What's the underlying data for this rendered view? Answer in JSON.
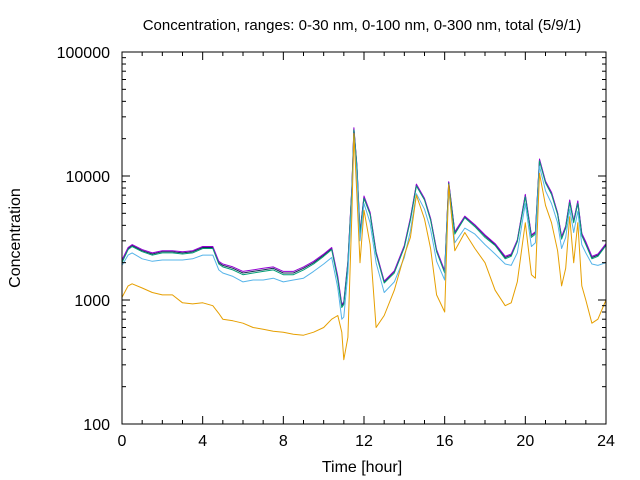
{
  "chart_data": {
    "type": "line",
    "title": "Concentration, ranges: 0-30 nm, 0-100 nm, 0-300 nm, total (5/9/1)",
    "xlabel": "Time [hour]",
    "ylabel": "Concentration",
    "xlim": [
      0,
      24
    ],
    "ylim": [
      100,
      100000
    ],
    "yscale": "log",
    "grid": false,
    "legend": "none",
    "x_ticks": [
      "0",
      "4",
      "8",
      "12",
      "16",
      "20",
      "24"
    ],
    "x_tick_values": [
      0,
      4,
      8,
      12,
      16,
      20,
      24
    ],
    "y_ticks": [
      "100",
      "1000",
      "10000",
      "100000"
    ],
    "y_tick_values": [
      100,
      1000,
      10000,
      100000
    ],
    "x": [
      0,
      0.3,
      0.5,
      1,
      1.5,
      2,
      2.5,
      3,
      3.5,
      4,
      4.5,
      4.8,
      5,
      5.5,
      6,
      6.5,
      7,
      7.5,
      8,
      8.5,
      9,
      9.5,
      10,
      10.4,
      10.7,
      10.9,
      11,
      11.2,
      11.4,
      11.5,
      11.65,
      11.8,
      12,
      12.3,
      12.6,
      13,
      13.5,
      14,
      14.3,
      14.6,
      15,
      15.3,
      15.6,
      16,
      16.2,
      16.5,
      17,
      17.5,
      18,
      18.5,
      19,
      19.3,
      19.6,
      20,
      20.3,
      20.5,
      20.7,
      21,
      21.3,
      21.6,
      21.8,
      22,
      22.2,
      22.4,
      22.6,
      22.8,
      23,
      23.3,
      23.6,
      24
    ],
    "series": [
      {
        "color": "#1c2a5a",
        "values": [
          2050,
          2600,
          2750,
          2500,
          2350,
          2450,
          2450,
          2400,
          2450,
          2650,
          2650,
          2000,
          1900,
          1800,
          1650,
          1700,
          1750,
          1800,
          1650,
          1650,
          1800,
          2000,
          2300,
          2600,
          1500,
          900,
          950,
          2000,
          8000,
          24000,
          12000,
          3500,
          6800,
          5000,
          2400,
          1400,
          1700,
          2700,
          4500,
          8500,
          6500,
          4500,
          2500,
          1700,
          8900,
          3500,
          4700,
          4000,
          3300,
          2800,
          2200,
          2300,
          3000,
          7000,
          3300,
          3500,
          13500,
          9000,
          7300,
          5000,
          3200,
          3900,
          6300,
          4300,
          6200,
          3400,
          2900,
          2200,
          2300,
          2800
        ]
      },
      {
        "color": "#9400d3",
        "values": [
          2100,
          2650,
          2800,
          2550,
          2400,
          2500,
          2500,
          2450,
          2500,
          2700,
          2700,
          2050,
          1950,
          1850,
          1700,
          1750,
          1800,
          1850,
          1700,
          1700,
          1850,
          2050,
          2350,
          2650,
          1550,
          920,
          970,
          2050,
          8200,
          24500,
          12200,
          3550,
          6900,
          5100,
          2450,
          1420,
          1720,
          2750,
          4600,
          8600,
          6600,
          4550,
          2550,
          1720,
          9000,
          3550,
          4750,
          4050,
          3350,
          2850,
          2250,
          2350,
          3050,
          7100,
          3350,
          3550,
          13700,
          9100,
          7400,
          5050,
          3250,
          3950,
          6400,
          4350,
          6300,
          3450,
          2950,
          2250,
          2350,
          2850
        ]
      },
      {
        "color": "#009e73",
        "values": [
          2000,
          2550,
          2700,
          2450,
          2300,
          2400,
          2400,
          2350,
          2400,
          2600,
          2600,
          1950,
          1850,
          1750,
          1600,
          1650,
          1700,
          1750,
          1600,
          1600,
          1750,
          1950,
          2250,
          2550,
          1450,
          870,
          920,
          1950,
          7800,
          23500,
          11800,
          3400,
          6600,
          4900,
          2350,
          1370,
          1650,
          2650,
          4400,
          8300,
          6400,
          4400,
          2450,
          1650,
          8700,
          3400,
          4600,
          3900,
          3200,
          2750,
          2150,
          2250,
          2950,
          6800,
          3200,
          3400,
          13200,
          8800,
          7100,
          4900,
          3100,
          3800,
          6100,
          4200,
          6000,
          3300,
          2800,
          2150,
          2250,
          2750
        ]
      },
      {
        "color": "#56b4e9",
        "values": [
          1900,
          2300,
          2400,
          2150,
          2050,
          2100,
          2100,
          2100,
          2150,
          2300,
          2300,
          1750,
          1650,
          1550,
          1400,
          1450,
          1450,
          1500,
          1400,
          1450,
          1500,
          1700,
          1950,
          2200,
          1250,
          700,
          730,
          1650,
          6500,
          21000,
          10000,
          3000,
          6000,
          4200,
          2000,
          1150,
          1400,
          2200,
          3600,
          7200,
          5400,
          3700,
          2050,
          1450,
          7600,
          2900,
          3800,
          3400,
          2800,
          2350,
          1950,
          1900,
          2400,
          6000,
          2700,
          2900,
          12000,
          7600,
          6000,
          4200,
          2600,
          3200,
          5400,
          3500,
          5200,
          2800,
          2400,
          1950,
          1900,
          2000
        ]
      },
      {
        "color": "#e69f00",
        "values": [
          1050,
          1300,
          1350,
          1250,
          1150,
          1100,
          1100,
          950,
          930,
          950,
          900,
          780,
          700,
          680,
          650,
          600,
          580,
          560,
          550,
          530,
          520,
          550,
          600,
          700,
          750,
          550,
          330,
          500,
          5000,
          22000,
          7000,
          2000,
          5300,
          2800,
          600,
          750,
          1200,
          2300,
          3200,
          7000,
          4500,
          2600,
          1100,
          800,
          8500,
          2500,
          3500,
          2600,
          2000,
          1200,
          900,
          950,
          1400,
          4200,
          1600,
          1500,
          10500,
          5800,
          4200,
          2500,
          1300,
          1800,
          4700,
          2000,
          4200,
          1300,
          1000,
          650,
          700,
          1000
        ]
      }
    ]
  }
}
